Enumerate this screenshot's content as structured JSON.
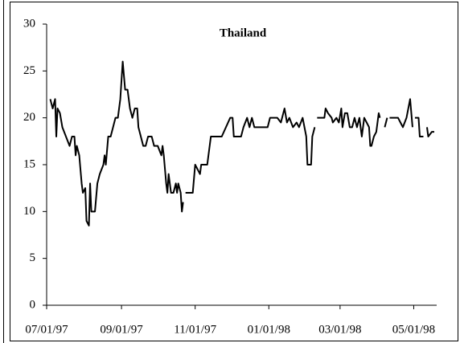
{
  "chart_data": {
    "type": "line",
    "title": "Thailand",
    "x": [
      "07/04/97",
      "07/06/97",
      "07/08/97",
      "07/09/97",
      "07/10/97",
      "07/12/97",
      "07/14/97",
      "07/17/97",
      "07/20/97",
      "07/22/97",
      "07/24/97",
      "07/25/97",
      "07/26/97",
      "07/28/97",
      "07/30/97",
      "07/31/97",
      "08/02/97",
      "08/03/97",
      "08/05/97",
      "08/06/97",
      "08/07/97",
      "08/10/97",
      "08/12/97",
      "08/14/97",
      "08/17/97",
      "08/18/97",
      "08/19/97",
      "08/21/97",
      "08/23/97",
      "08/25/97",
      "08/27/97",
      "08/29/97",
      "08/31/97",
      "09/02/97",
      "09/04/97",
      "09/06/97",
      "09/08/97",
      "09/10/97",
      "09/12/97",
      "09/14/97",
      "09/15/97",
      "09/17/97",
      "09/19/97",
      "09/21/97",
      "09/23/97",
      "09/26/97",
      "09/28/97",
      "10/01/97",
      "10/04/97",
      "10/05/97",
      "10/06/97",
      "10/08/97",
      "10/09/97",
      "10/10/97",
      "10/12/97",
      "10/14/97",
      "10/16/97",
      "10/17/97",
      "10/18/97",
      "10/20/97",
      "10/21/97",
      "10/22/97",
      "10/23/97",
      "10/24/97",
      "10/30/97",
      "11/01/97",
      "11/03/97",
      "11/05/97",
      "11/06/97",
      "11/11/97",
      "11/14/97",
      "11/23/97",
      "11/30/97",
      "12/02/97",
      "12/03/97",
      "12/05/97",
      "12/09/97",
      "12/11/97",
      "12/14/97",
      "12/16/97",
      "12/18/97",
      "12/20/97",
      "12/31/97",
      "01/02/98",
      "01/08/98",
      "01/11/98",
      "01/14/98",
      "01/16/98",
      "01/18/98",
      "01/21/98",
      "01/24/98",
      "01/26/98",
      "01/29/98",
      "02/01/98",
      "02/02/98",
      "02/05/98",
      "02/06/98",
      "02/08/98",
      "02/09/98",
      "02/10/98",
      "02/16/98",
      "02/17/98",
      "02/19/98",
      "02/22/98",
      "02/23/98",
      "02/26/98",
      "02/28/98",
      "03/02/98",
      "03/03/98",
      "03/05/98",
      "03/07/98",
      "03/09/98",
      "03/11/98",
      "03/13/98",
      "03/15/98",
      "03/17/98",
      "03/18/98",
      "03/19/98",
      "03/21/98",
      "03/23/98",
      "03/25/98",
      "03/26/98",
      "03/27/98",
      "03/29/98",
      "03/31/98",
      "04/02/98",
      "04/03/98",
      "04/04/98",
      "04/07/98",
      "04/09/98",
      "04/10/98",
      "04/11/98",
      "04/18/98",
      "04/20/98",
      "04/22/98",
      "04/25/98",
      "04/28/98",
      "04/30/98",
      "05/01/98",
      "05/02/98",
      "05/05/98",
      "05/06/98",
      "05/09/98",
      "05/10/98",
      "05/12/98",
      "05/13/98",
      "05/16/98",
      "05/18/98"
    ],
    "series": [
      {
        "color": "#000000",
        "values": [
          22,
          21,
          22,
          18,
          21,
          20.5,
          19,
          18,
          17,
          18,
          18,
          16,
          17,
          16,
          13,
          12,
          12.5,
          9,
          8.5,
          13,
          10,
          10,
          13,
          14,
          15,
          16,
          15,
          18,
          18,
          19,
          20,
          20,
          22,
          26,
          23,
          23,
          21,
          20,
          21,
          21,
          19,
          18,
          17,
          17,
          18,
          18,
          17,
          17,
          16,
          17,
          16,
          13,
          12,
          14,
          12,
          12,
          13,
          12,
          13,
          12,
          10,
          11,
          null,
          12,
          12,
          15,
          14.5,
          14,
          15,
          15,
          18,
          18,
          20,
          20,
          18,
          18,
          18,
          19,
          20,
          19,
          20,
          19,
          19,
          20,
          20,
          19.5,
          21,
          19.5,
          20,
          19,
          19.5,
          19,
          20,
          18,
          15,
          15,
          18,
          19,
          null,
          20,
          20,
          21,
          20.5,
          20,
          19.5,
          20,
          19.5,
          21,
          19,
          20.5,
          20.5,
          19,
          19,
          20,
          19,
          20,
          19,
          18,
          20,
          19.5,
          19,
          17,
          17,
          18,
          18.5,
          20.5,
          20,
          null,
          19,
          20,
          null,
          20,
          20,
          19.5,
          19,
          20,
          22,
          19,
          null,
          20,
          20,
          18,
          18,
          null,
          19,
          18,
          18.5,
          18.5
        ]
      }
    ],
    "xlim": [
      "07/01/97",
      "05/20/98"
    ],
    "xticks": [
      "07/01/97",
      "09/01/97",
      "11/01/97",
      "01/01/98",
      "03/01/98",
      "05/01/98"
    ],
    "ylim": [
      0,
      30
    ],
    "yticks": [
      0,
      5,
      10,
      15,
      20,
      25,
      30
    ],
    "grid": false
  }
}
